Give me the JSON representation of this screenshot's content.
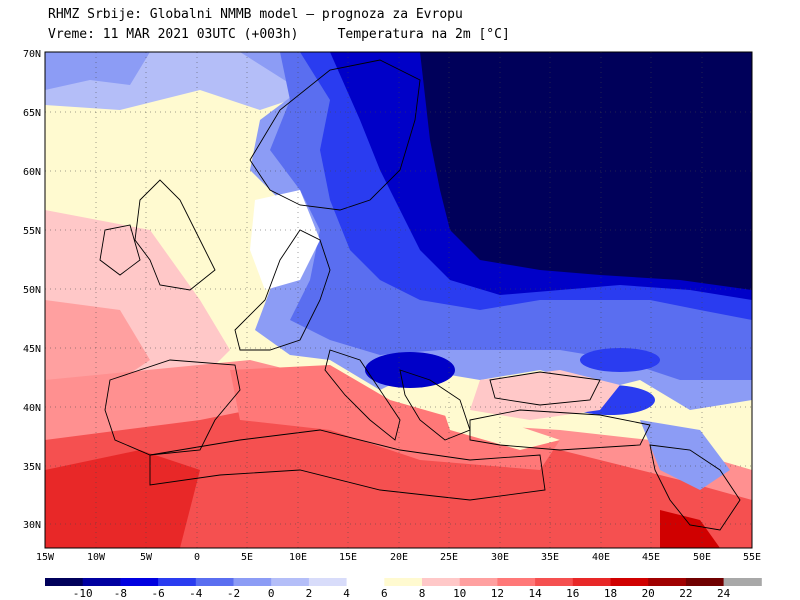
{
  "header": {
    "line1": "RHMZ Srbije: Globalni NMMB model – prognoza za Evropu",
    "line2_time": "Vreme: 11 MAR 2021 03UTC (+003h)",
    "line2_field": "Temperatura na 2m [°C]"
  },
  "axes": {
    "lat_labels": [
      "70N",
      "65N",
      "60N",
      "55N",
      "50N",
      "45N",
      "40N",
      "35N",
      "30N"
    ],
    "lon_labels": [
      "15W",
      "10W",
      "5W",
      "0",
      "5E",
      "10E",
      "15E",
      "20E",
      "25E",
      "30E",
      "35E",
      "40E",
      "45E",
      "50E",
      "55E"
    ]
  },
  "legend": {
    "labels": [
      "-10",
      "-8",
      "-6",
      "-4",
      "-2",
      "0",
      "2",
      "4",
      "6",
      "8",
      "10",
      "12",
      "14",
      "16",
      "18",
      "20",
      "22",
      "24"
    ],
    "colors": [
      "#00005a",
      "#0000a0",
      "#0000e0",
      "#2a3cf0",
      "#5a6ef0",
      "#8c9cf5",
      "#b4bef8",
      "#d8dcfa",
      "#ffffff",
      "#fffad0",
      "#ffc8c8",
      "#ffa0a0",
      "#ff7878",
      "#f55050",
      "#e82828",
      "#d00000",
      "#a00000",
      "#700000",
      "#a8a8a8"
    ]
  },
  "colors": {
    "very_cold": "#00005a",
    "cold": "#0000c8",
    "cool": "#6e82f0",
    "mild": "#fffad0",
    "warm": "#ff9090",
    "hot": "#e82828"
  }
}
